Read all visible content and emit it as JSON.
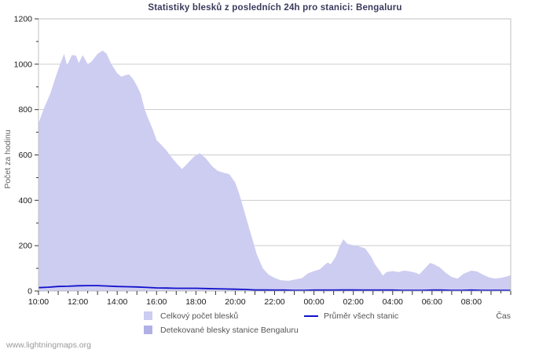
{
  "chart_data": {
    "type": "area",
    "title": "Statistiky blesků z posledních 24h pro stanici: Bengaluru",
    "ylabel": "Počet za hodinu",
    "xlabel": "Čas",
    "ylim": [
      0,
      1200
    ],
    "ytick_major_step": 200,
    "ytick_minor_step": 100,
    "grid": "horizontal",
    "legend_position": "bottom",
    "x_hours_span": 24,
    "x_tick_labels": [
      "10:00",
      "12:00",
      "14:00",
      "16:00",
      "18:00",
      "20:00",
      "22:00",
      "00:00",
      "02:00",
      "04:00",
      "06:00",
      "08:00"
    ],
    "x_label_every_hours": 2,
    "colors": {
      "total_fill": "#cdccf1",
      "station_fill": "#b1b0e6",
      "average_line": "#1111cc",
      "grid": "#cccccc",
      "border": "#c0c0c0",
      "tick": "#333333",
      "tick_label": "#1a1a1a"
    },
    "series": [
      {
        "name": "Celkový počet blesků",
        "type": "area",
        "color": "#cdccf1",
        "points": [
          [
            0,
            740
          ],
          [
            0.3,
            810
          ],
          [
            0.6,
            870
          ],
          [
            0.9,
            950
          ],
          [
            1.1,
            1000
          ],
          [
            1.3,
            1045
          ],
          [
            1.45,
            995
          ],
          [
            1.7,
            1040
          ],
          [
            1.9,
            1038
          ],
          [
            2.05,
            1005
          ],
          [
            2.25,
            1040
          ],
          [
            2.5,
            1000
          ],
          [
            2.7,
            1012
          ],
          [
            3.0,
            1045
          ],
          [
            3.25,
            1060
          ],
          [
            3.45,
            1048
          ],
          [
            3.7,
            1000
          ],
          [
            4.0,
            960
          ],
          [
            4.2,
            945
          ],
          [
            4.45,
            952
          ],
          [
            4.6,
            955
          ],
          [
            4.8,
            935
          ],
          [
            5.0,
            905
          ],
          [
            5.2,
            868
          ],
          [
            5.4,
            800
          ],
          [
            5.6,
            755
          ],
          [
            5.8,
            715
          ],
          [
            6.0,
            665
          ],
          [
            6.2,
            648
          ],
          [
            6.5,
            620
          ],
          [
            6.8,
            585
          ],
          [
            7.1,
            555
          ],
          [
            7.3,
            538
          ],
          [
            7.6,
            565
          ],
          [
            7.9,
            592
          ],
          [
            8.2,
            608
          ],
          [
            8.5,
            585
          ],
          [
            8.8,
            552
          ],
          [
            9.1,
            530
          ],
          [
            9.4,
            522
          ],
          [
            9.7,
            515
          ],
          [
            10.0,
            478
          ],
          [
            10.2,
            430
          ],
          [
            10.5,
            340
          ],
          [
            10.8,
            250
          ],
          [
            11.1,
            160
          ],
          [
            11.4,
            100
          ],
          [
            11.7,
            72
          ],
          [
            12.0,
            58
          ],
          [
            12.3,
            48
          ],
          [
            12.7,
            45
          ],
          [
            13.0,
            50
          ],
          [
            13.4,
            57
          ],
          [
            13.7,
            78
          ],
          [
            14.0,
            88
          ],
          [
            14.3,
            96
          ],
          [
            14.5,
            112
          ],
          [
            14.7,
            126
          ],
          [
            14.85,
            118
          ],
          [
            15.1,
            150
          ],
          [
            15.3,
            196
          ],
          [
            15.5,
            228
          ],
          [
            15.7,
            208
          ],
          [
            16.0,
            202
          ],
          [
            16.3,
            196
          ],
          [
            16.6,
            188
          ],
          [
            16.9,
            152
          ],
          [
            17.1,
            118
          ],
          [
            17.35,
            88
          ],
          [
            17.5,
            68
          ],
          [
            17.7,
            84
          ],
          [
            18.0,
            88
          ],
          [
            18.3,
            84
          ],
          [
            18.6,
            90
          ],
          [
            18.9,
            86
          ],
          [
            19.2,
            80
          ],
          [
            19.35,
            73
          ],
          [
            19.6,
            96
          ],
          [
            19.9,
            124
          ],
          [
            20.1,
            118
          ],
          [
            20.4,
            104
          ],
          [
            20.7,
            80
          ],
          [
            21.0,
            62
          ],
          [
            21.3,
            55
          ],
          [
            21.6,
            76
          ],
          [
            22.0,
            90
          ],
          [
            22.3,
            86
          ],
          [
            22.6,
            72
          ],
          [
            22.9,
            60
          ],
          [
            23.2,
            55
          ],
          [
            23.5,
            58
          ],
          [
            23.8,
            64
          ],
          [
            24.0,
            70
          ]
        ]
      },
      {
        "name": "Detekované blesky stanice Bengaluru",
        "type": "area",
        "color": "#b1b0e6",
        "points": [
          [
            0,
            0
          ],
          [
            24,
            0
          ]
        ]
      },
      {
        "name": "Průměr všech stanic",
        "type": "line",
        "color": "#1111cc",
        "points": [
          [
            0,
            15
          ],
          [
            0.5,
            17
          ],
          [
            1,
            20
          ],
          [
            1.5,
            21
          ],
          [
            2,
            23
          ],
          [
            2.5,
            24
          ],
          [
            3,
            24
          ],
          [
            3.5,
            22
          ],
          [
            4,
            20
          ],
          [
            4.5,
            19
          ],
          [
            5,
            18
          ],
          [
            5.5,
            16
          ],
          [
            6,
            14
          ],
          [
            6.5,
            13
          ],
          [
            7,
            12
          ],
          [
            7.5,
            12
          ],
          [
            8,
            12
          ],
          [
            8.5,
            11
          ],
          [
            9,
            10
          ],
          [
            9.5,
            9
          ],
          [
            10,
            8
          ],
          [
            10.5,
            7
          ],
          [
            11,
            5
          ],
          [
            11.5,
            5
          ],
          [
            12,
            4
          ],
          [
            12.5,
            4
          ],
          [
            13,
            3
          ],
          [
            13.5,
            3
          ],
          [
            14,
            4
          ],
          [
            14.5,
            4
          ],
          [
            15,
            4
          ],
          [
            15.5,
            5
          ],
          [
            16,
            5
          ],
          [
            16.5,
            4
          ],
          [
            17,
            4
          ],
          [
            17.5,
            4
          ],
          [
            18,
            4
          ],
          [
            18.5,
            3
          ],
          [
            19,
            3
          ],
          [
            19.5,
            3
          ],
          [
            20,
            4
          ],
          [
            20.5,
            4
          ],
          [
            21,
            3
          ],
          [
            21.5,
            3
          ],
          [
            22,
            4
          ],
          [
            22.5,
            3
          ],
          [
            23,
            3
          ],
          [
            23.5,
            3
          ],
          [
            24,
            3
          ]
        ]
      }
    ],
    "watermark": "www.lightningmaps.org"
  }
}
